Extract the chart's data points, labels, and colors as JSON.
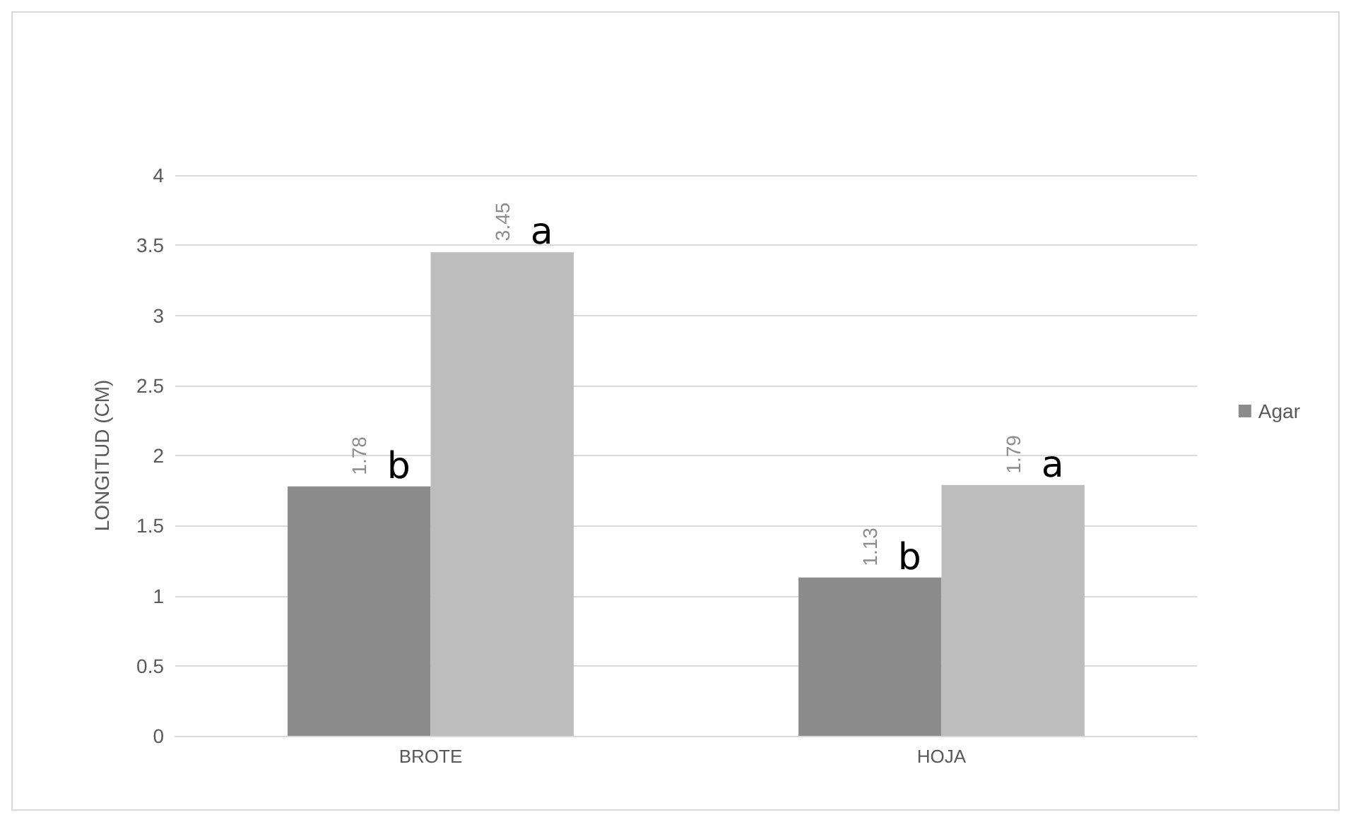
{
  "chart_data": {
    "type": "bar",
    "ylabel": "LONGITUD (CM)",
    "categories": [
      "BROTE",
      "HOJA"
    ],
    "series": [
      {
        "name": "Agar",
        "color": "#8c8c8c",
        "values": [
          1.78,
          1.13
        ]
      },
      {
        "color": "#bdbdbd",
        "values": [
          3.45,
          1.79
        ]
      }
    ],
    "ylim": [
      0,
      4
    ],
    "yticks": [
      0,
      0.5,
      1,
      1.5,
      2,
      2.5,
      3,
      3.5,
      4
    ],
    "grid": "y",
    "legend": "right",
    "data_labels": true,
    "annotations": [
      {
        "text": "b",
        "x": "BROTE",
        "y": 1.78
      },
      {
        "text": "a",
        "x": "BROTE",
        "y": 3.45
      },
      {
        "text": "b",
        "x": "HOJA",
        "y": 1.13
      },
      {
        "text": "a",
        "x": "HOJA",
        "y": 1.79
      }
    ]
  }
}
